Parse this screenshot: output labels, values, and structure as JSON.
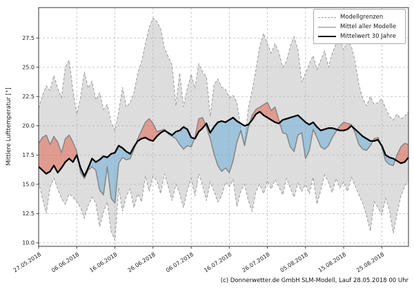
{
  "figure": {
    "caption": "(c) Donnerwetter.de GmbH SLM-Modell, Lauf 28.05.2018 00 Uhr"
  },
  "legend": {
    "items": [
      {
        "label": "Modellgrenzen",
        "style": "dashed-gray"
      },
      {
        "label": "Mittel aller Modelle",
        "style": "solid-gray"
      },
      {
        "label": "Mittelwert 30 Jahre",
        "style": "solid-black"
      }
    ]
  },
  "colors": {
    "band_fill": "rgba(180,180,180,0.45)",
    "band_edge": "#999999",
    "model_mean_line": "#858585",
    "mean30_line": "#000000",
    "above_fill": "rgba(227,89,67,0.5)",
    "below_fill": "rgba(96,170,215,0.5)",
    "grid": "#b9b9b9",
    "spine": "#333333",
    "tick_text": "#1a1a1a"
  },
  "chart_data": {
    "type": "line",
    "title": "",
    "xlabel": "",
    "ylabel": "Mittlere Lufttemperatur [°]",
    "grid": true,
    "legend_position": "upper right",
    "x_unit": "days since 27.05.2018",
    "xlim": [
      0,
      97
    ],
    "ylim": [
      9.7,
      30.1
    ],
    "x_ticks": {
      "days": [
        0,
        10,
        20,
        30,
        40,
        50,
        60,
        70,
        80,
        90
      ],
      "labels": [
        "27.05.2018",
        "06.06.2018",
        "16.06.2018",
        "26.06.2018",
        "06.07.2018",
        "16.07.2018",
        "26.07.2018",
        "05.08.2018",
        "15.08.2018",
        "25.08.2018"
      ]
    },
    "y_ticks": [
      10.0,
      12.5,
      15.0,
      17.5,
      20.0,
      22.5,
      25.0,
      27.5
    ],
    "series": [
      {
        "name": "Modellgrenzen (obere Grenze)",
        "role": "upper",
        "values": [
          21.5,
          22.6,
          23.4,
          23.0,
          24.3,
          23.2,
          22.4,
          25.0,
          25.6,
          23.0,
          21.0,
          22.4,
          24.6,
          23.2,
          23.8,
          22.2,
          22.8,
          21.4,
          21.8,
          20.3,
          19.6,
          21.2,
          23.3,
          21.6,
          22.0,
          22.8,
          24.5,
          25.5,
          27.0,
          28.4,
          29.2,
          28.9,
          28.3,
          26.6,
          25.9,
          25.2,
          21.7,
          24.5,
          21.6,
          23.2,
          24.4,
          23.2,
          25.3,
          24.6,
          24.2,
          20.8,
          23.5,
          24.0,
          23.3,
          23.1,
          22.4,
          22.6,
          22.0,
          19.8,
          18.5,
          21.5,
          23.0,
          24.8,
          26.8,
          27.9,
          27.0,
          26.2,
          27.0,
          26.3,
          25.0,
          25.5,
          26.8,
          27.6,
          26.5,
          23.7,
          24.5,
          25.3,
          26.0,
          24.8,
          25.6,
          26.4,
          25.0,
          26.2,
          27.0,
          27.4,
          26.5,
          27.2,
          26.8,
          25.5,
          23.5,
          22.3,
          21.7,
          22.5,
          21.8,
          22.0,
          22.3,
          21.5,
          20.8,
          20.5,
          21.0,
          20.6,
          20.8,
          21.2
        ]
      },
      {
        "name": "Modellgrenzen (untere Grenze)",
        "role": "lower",
        "values": [
          15.2,
          13.8,
          12.5,
          14.8,
          15.5,
          14.6,
          13.8,
          13.3,
          14.2,
          13.9,
          13.5,
          13.0,
          12.1,
          13.2,
          13.9,
          13.4,
          11.4,
          12.6,
          13.5,
          11.0,
          10.2,
          14.7,
          12.7,
          14.0,
          14.6,
          13.0,
          14.2,
          13.5,
          15.7,
          14.4,
          15.7,
          15.3,
          14.2,
          15.9,
          14.8,
          13.6,
          15.0,
          14.2,
          13.0,
          14.5,
          15.5,
          14.0,
          15.9,
          14.9,
          13.6,
          15.2,
          14.4,
          13.5,
          14.0,
          15.2,
          14.8,
          15.4,
          13.1,
          14.4,
          15.0,
          13.6,
          12.7,
          14.4,
          15.0,
          14.2,
          15.3,
          14.6,
          15.4,
          14.8,
          14.1,
          15.5,
          14.7,
          13.9,
          15.1,
          14.4,
          15.0,
          14.2,
          15.6,
          13.3,
          14.5,
          15.8,
          15.2,
          14.3,
          15.5,
          14.7,
          15.2,
          14.4,
          15.6,
          14.9,
          14.1,
          13.4,
          12.3,
          11.0,
          13.5,
          13.0,
          12.4,
          13.8,
          12.8,
          10.8,
          12.5,
          14.0,
          14.8,
          15.3
        ]
      },
      {
        "name": "Mittel aller Modelle",
        "role": "model_mean",
        "values": [
          18.5,
          19.0,
          19.2,
          18.4,
          19.1,
          18.6,
          17.7,
          18.9,
          19.2,
          18.6,
          17.8,
          16.0,
          15.5,
          16.2,
          16.5,
          16.2,
          14.5,
          14.1,
          16.5,
          13.8,
          13.4,
          16.8,
          17.3,
          17.1,
          17.2,
          18.0,
          18.9,
          19.6,
          20.3,
          20.6,
          20.2,
          19.5,
          19.6,
          19.7,
          19.3,
          19.1,
          18.9,
          18.4,
          18.0,
          18.3,
          18.2,
          19.0,
          20.6,
          20.7,
          19.9,
          18.9,
          17.6,
          16.6,
          16.1,
          16.4,
          16.0,
          17.0,
          18.6,
          19.6,
          18.3,
          19.9,
          20.9,
          21.4,
          21.6,
          21.8,
          22.0,
          21.3,
          21.6,
          20.5,
          19.4,
          19.3,
          18.2,
          17.8,
          19.2,
          19.4,
          17.2,
          17.9,
          19.7,
          19.0,
          18.2,
          18.0,
          18.3,
          19.0,
          19.5,
          20.0,
          20.3,
          20.2,
          20.1,
          19.4,
          18.4,
          18.0,
          17.9,
          18.3,
          18.9,
          19.0,
          18.2,
          17.0,
          16.7,
          16.6,
          17.5,
          18.2,
          18.5,
          18.4
        ]
      },
      {
        "name": "Mittelwert 30 Jahre",
        "role": "mean30",
        "values": [
          16.5,
          16.2,
          15.9,
          16.1,
          16.6,
          16.0,
          16.4,
          16.9,
          17.2,
          16.9,
          17.5,
          16.4,
          15.7,
          16.4,
          17.2,
          16.9,
          17.1,
          17.4,
          17.3,
          17.6,
          17.7,
          18.3,
          18.1,
          17.8,
          17.6,
          18.2,
          18.7,
          18.9,
          19.0,
          18.8,
          18.7,
          19.1,
          19.4,
          19.6,
          19.4,
          19.2,
          19.5,
          19.6,
          19.9,
          19.7,
          19.0,
          18.9,
          19.5,
          19.8,
          20.2,
          19.4,
          19.9,
          20.3,
          20.4,
          20.3,
          20.5,
          20.7,
          20.4,
          20.2,
          20.0,
          20.1,
          20.5,
          21.0,
          21.2,
          20.9,
          20.7,
          20.5,
          20.3,
          20.2,
          20.5,
          20.6,
          20.7,
          20.8,
          20.9,
          20.6,
          20.3,
          20.1,
          20.3,
          19.9,
          19.6,
          19.7,
          19.8,
          19.8,
          19.7,
          19.6,
          19.6,
          19.7,
          20.0,
          19.7,
          19.4,
          19.1,
          18.9,
          18.7,
          18.7,
          18.8,
          18.3,
          17.5,
          17.3,
          17.2,
          17.0,
          16.8,
          16.9,
          17.3
        ]
      }
    ]
  }
}
